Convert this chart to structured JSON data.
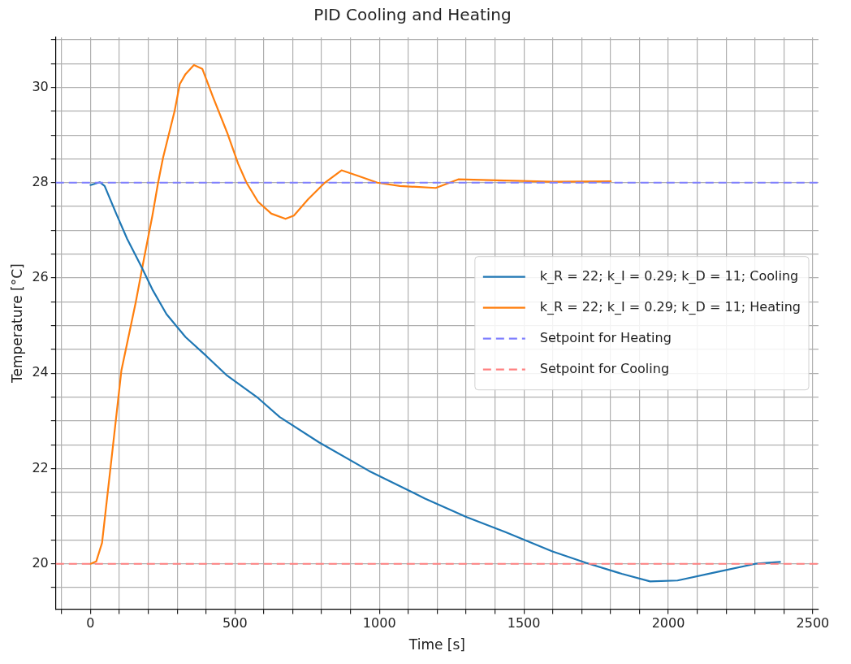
{
  "chart_data": {
    "type": "line",
    "title": "PID Cooling and Heating",
    "xlabel": "Time [s]",
    "ylabel": "Temperature [°C]",
    "xlim": [
      -120,
      2520
    ],
    "ylim": [
      19.05,
      31.05
    ],
    "xticks": [
      {
        "value": -100,
        "label": null
      },
      0,
      {
        "value": 100,
        "label": null
      },
      {
        "value": 200,
        "label": null
      },
      {
        "value": 300,
        "label": null
      },
      {
        "value": 400,
        "label": null
      },
      500,
      {
        "value": 600,
        "label": null
      },
      {
        "value": 700,
        "label": null
      },
      {
        "value": 800,
        "label": null
      },
      {
        "value": 900,
        "label": null
      },
      1000,
      {
        "value": 1100,
        "label": null
      },
      {
        "value": 1200,
        "label": null
      },
      {
        "value": 1300,
        "label": null
      },
      {
        "value": 1400,
        "label": null
      },
      1500,
      {
        "value": 1600,
        "label": null
      },
      {
        "value": 1700,
        "label": null
      },
      {
        "value": 1800,
        "label": null
      },
      {
        "value": 1900,
        "label": null
      },
      2000,
      {
        "value": 2100,
        "label": null
      },
      {
        "value": 2200,
        "label": null
      },
      {
        "value": 2300,
        "label": null
      },
      {
        "value": 2400,
        "label": null
      },
      2500
    ],
    "yticks": [
      {
        "value": 19.5,
        "label": null
      },
      20,
      {
        "value": 20.5,
        "label": null
      },
      {
        "value": 21,
        "label": null
      },
      {
        "value": 21.5,
        "label": null
      },
      22,
      {
        "value": 22.5,
        "label": null
      },
      {
        "value": 23,
        "label": null
      },
      {
        "value": 23.5,
        "label": null
      },
      24,
      {
        "value": 24.5,
        "label": null
      },
      {
        "value": 25,
        "label": null
      },
      {
        "value": 25.5,
        "label": null
      },
      26,
      {
        "value": 26.5,
        "label": null
      },
      {
        "value": 27,
        "label": null
      },
      {
        "value": 27.5,
        "label": null
      },
      28,
      {
        "value": 28.5,
        "label": null
      },
      {
        "value": 29,
        "label": null
      },
      {
        "value": 29.5,
        "label": null
      },
      30,
      {
        "value": 30.5,
        "label": null
      },
      {
        "value": 31,
        "label": null
      }
    ],
    "grid": true,
    "legend": "right",
    "line_style": "solid",
    "marker": "none",
    "series": [
      {
        "name": "k_R = 22; k_I = 0.29; k_D = 11; Cooling",
        "color": "#1f77b4",
        "x": [
          0,
          32,
          49,
          89,
          127,
          176,
          214,
          263,
          329,
          396,
          473,
          580,
          655,
          791,
          964,
          1158,
          1302,
          1435,
          1599,
          1715,
          1839,
          1937,
          2032,
          2177,
          2301,
          2387
        ],
        "values": [
          27.95,
          28.01,
          27.93,
          27.35,
          26.82,
          26.24,
          25.76,
          25.24,
          24.76,
          24.39,
          23.95,
          23.48,
          23.08,
          22.55,
          21.95,
          21.37,
          20.98,
          20.67,
          20.26,
          20.02,
          19.79,
          19.63,
          19.65,
          19.84,
          20.0,
          20.04
        ]
      },
      {
        "name": "k_R = 22; k_I = 0.29; k_D = 11; Heating",
        "color": "#ff7f0e",
        "x": [
          0,
          20,
          40,
          69,
          107,
          156,
          185,
          214,
          234,
          251,
          291,
          309,
          329,
          358,
          387,
          424,
          473,
          511,
          540,
          580,
          626,
          675,
          704,
          753,
          811,
          869,
          927,
          993,
          1071,
          1195,
          1273,
          1406,
          1599,
          1801
        ],
        "values": [
          20.0,
          20.05,
          20.44,
          22.0,
          24.06,
          25.47,
          26.4,
          27.3,
          28.0,
          28.52,
          29.5,
          30.07,
          30.28,
          30.47,
          30.39,
          29.8,
          29.05,
          28.4,
          28.0,
          27.6,
          27.35,
          27.24,
          27.31,
          27.65,
          28.0,
          28.26,
          28.14,
          28.0,
          27.93,
          27.89,
          28.07,
          28.05,
          28.02,
          28.03
        ]
      }
    ],
    "ref_lines": [
      {
        "axis": "y",
        "value": 28,
        "label": "Setpoint for Heating",
        "color": "#8080ff",
        "line_style": "dashed"
      },
      {
        "axis": "y",
        "value": 20,
        "label": "Setpoint for Cooling",
        "color": "#ff8080",
        "line_style": "dashed"
      }
    ]
  }
}
